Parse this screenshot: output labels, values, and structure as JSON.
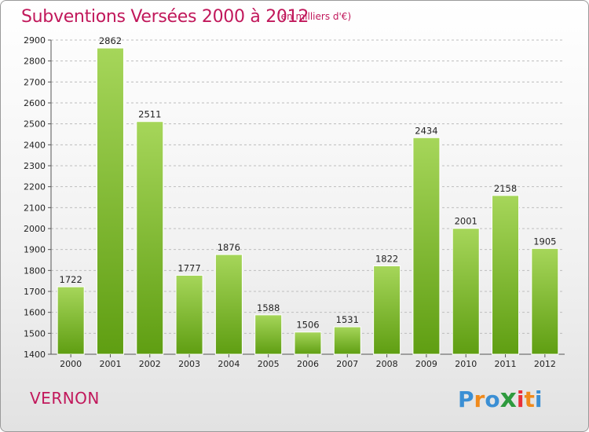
{
  "header": {
    "title": "Subventions Versées 2000 à 2012",
    "subtitle": "(en milliers d'€)"
  },
  "footer": {
    "town": "VERNON",
    "logo_letters": [
      "P",
      "r",
      "o",
      "x",
      "i",
      "t",
      "i"
    ],
    "logo_colors": [
      "#3b8fd4",
      "#f08a1c",
      "#3b8fd4",
      "#2e9a3e",
      "#e8303a",
      "#f08a1c",
      "#3b8fd4"
    ]
  },
  "colors": {
    "bar_top": "#a6d65a",
    "bar_bottom": "#5f9e12",
    "grid": "#bdbdbd",
    "title": "#c1185b"
  },
  "chart_data": {
    "type": "bar",
    "categories": [
      "2000",
      "2001",
      "2002",
      "2003",
      "2004",
      "2005",
      "2006",
      "2007",
      "2008",
      "2009",
      "2010",
      "2011",
      "2012"
    ],
    "values": [
      1722,
      2862,
      2511,
      1777,
      1876,
      1588,
      1506,
      1531,
      1822,
      2434,
      2001,
      2158,
      1905
    ],
    "ylim": [
      1400,
      2900
    ],
    "yticks": [
      1400,
      1500,
      1600,
      1700,
      1800,
      1900,
      2000,
      2100,
      2200,
      2300,
      2400,
      2500,
      2600,
      2700,
      2800,
      2900
    ],
    "grid": true,
    "legend": "none"
  }
}
